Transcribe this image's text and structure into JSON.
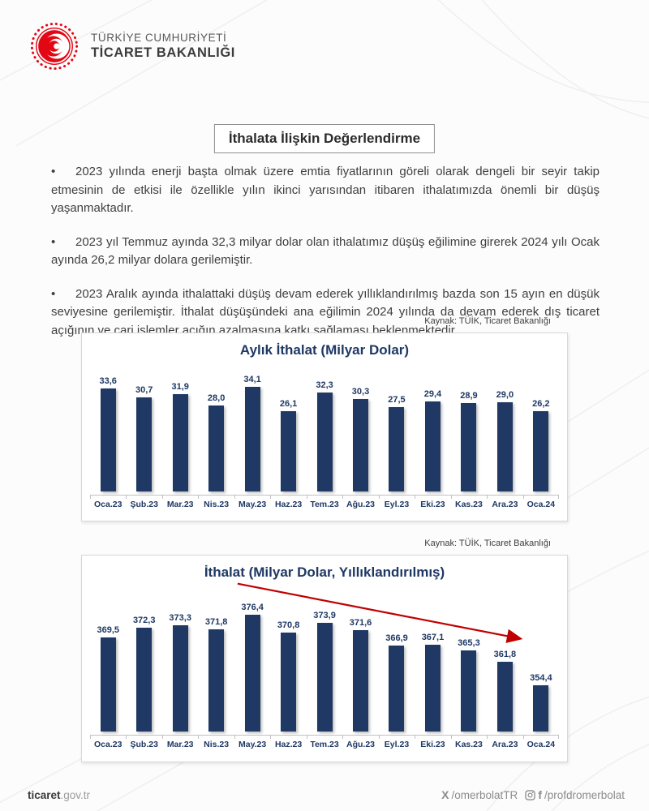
{
  "header": {
    "ministry_line1": "TÜRKİYE CUMHURİYETİ",
    "ministry_line2": "TİCARET BAKANLIĞI"
  },
  "page_title": "İthalata İlişkin Değerlendirme",
  "bullets": [
    "2023 yılında enerji başta olmak üzere emtia fiyatlarının göreli olarak dengeli bir seyir takip etmesinin de etkisi ile özellikle yılın ikinci yarısından itibaren ithalatımızda önemli bir düşüş yaşanmaktadır.",
    "2023 yıl Temmuz ayında 32,3 milyar dolar olan ithalatımız düşüş eğilimine girerek 2024 yılı Ocak ayında 26,2 milyar dolara gerilemiştir.",
    "2023 Aralık ayında ithalattaki düşüş devam ederek yıllıklandırılmış bazda son 15 ayın en düşük seviyesine gerilemiştir. İthalat düşüşündeki ana eğilimin 2024 yılında da devam ederek dış ticaret açığının ve cari işlemler açığın azalmasına katkı sağlaması beklenmektedir."
  ],
  "bullet_char": "•",
  "source_note": "Kaynak: TÜİK, Ticaret Bakanlığı",
  "colors": {
    "bar_navy": "#1f3864",
    "trend_arrow_red": "#c00000",
    "logo_red": "#e30613"
  },
  "chart_data": [
    {
      "type": "bar",
      "title": "Aylık İthalat (Milyar Dolar)",
      "categories": [
        "Oca.23",
        "Şub.23",
        "Mar.23",
        "Nis.23",
        "May.23",
        "Haz.23",
        "Tem.23",
        "Ağu.23",
        "Eyl.23",
        "Eki.23",
        "Kas.23",
        "Ara.23",
        "Oca.24"
      ],
      "values": [
        33.6,
        30.7,
        31.9,
        28.0,
        34.1,
        26.1,
        32.3,
        30.3,
        27.5,
        29.4,
        28.9,
        29.0,
        26.2
      ],
      "value_labels": [
        "33,6",
        "30,7",
        "31,9",
        "28,0",
        "34,1",
        "26,1",
        "32,3",
        "30,3",
        "27,5",
        "29,4",
        "28,9",
        "29,0",
        "26,2"
      ],
      "xlabel": "",
      "ylabel": "",
      "ylim": [
        0,
        36
      ],
      "grid": false,
      "legend": false,
      "bar_color": "#1f3864"
    },
    {
      "type": "bar",
      "title": "İthalat (Milyar Dolar, Yıllıklandırılmış)",
      "categories": [
        "Oca.23",
        "Şub.23",
        "Mar.23",
        "Nis.23",
        "May.23",
        "Haz.23",
        "Tem.23",
        "Ağu.23",
        "Eyl.23",
        "Eki.23",
        "Kas.23",
        "Ara.23",
        "Oca.24"
      ],
      "values": [
        369.5,
        372.3,
        373.3,
        371.8,
        376.4,
        370.8,
        373.9,
        371.6,
        366.9,
        367.1,
        365.3,
        361.8,
        354.4
      ],
      "value_labels": [
        "369,5",
        "372,3",
        "373,3",
        "371,8",
        "376,4",
        "370,8",
        "373,9",
        "371,6",
        "366,9",
        "367,1",
        "365,3",
        "361,8",
        "354,4"
      ],
      "xlabel": "",
      "ylabel": "",
      "ylim": [
        340,
        380
      ],
      "grid": false,
      "legend": false,
      "bar_color": "#1f3864",
      "annotation": {
        "type": "trend-arrow",
        "color": "#c00000",
        "direction": "down-right"
      }
    }
  ],
  "footer": {
    "site_bold": "ticaret",
    "site_rest": ".gov.tr",
    "x_glyph": "X",
    "x_handle": "/omerbolatTR",
    "f_glyph": "f",
    "social_handle": "/profdromerbolat"
  }
}
